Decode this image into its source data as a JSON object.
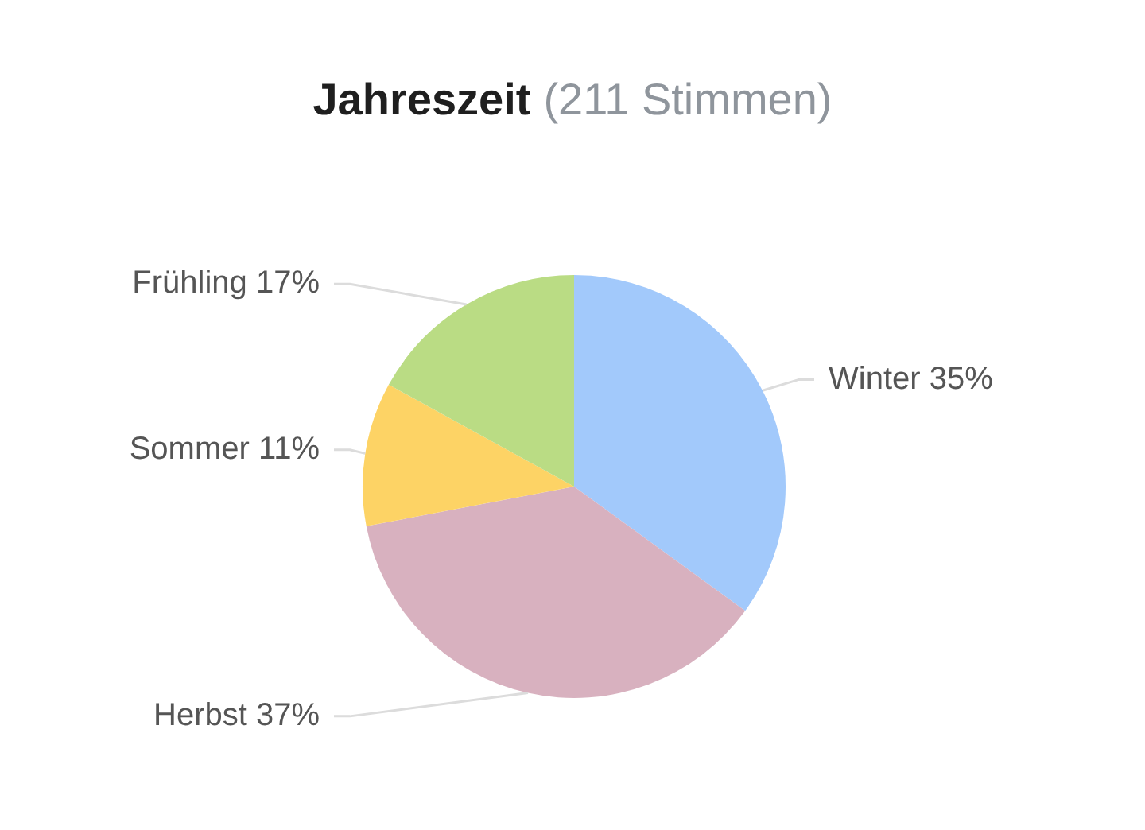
{
  "chart_data": {
    "type": "pie",
    "title": "Jahreszeit",
    "subtitle": "(211 Stimmen)",
    "categories": [
      "Winter",
      "Herbst",
      "Sommer",
      "Frühling"
    ],
    "values": [
      35,
      37,
      11,
      17
    ],
    "colors": [
      "#a2c9fb",
      "#d8b1bf",
      "#fdd365",
      "#badc84"
    ],
    "value_labels": [
      "35%",
      "37%",
      "11%",
      "17%"
    ]
  }
}
